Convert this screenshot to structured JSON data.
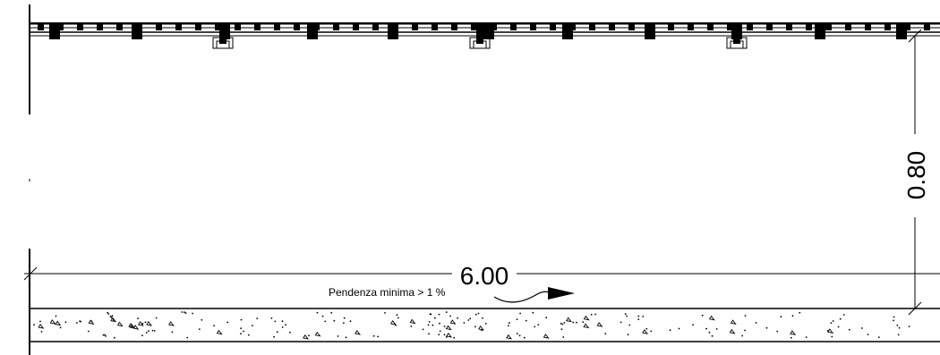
{
  "drawing": {
    "dimension_horizontal": "6.00",
    "dimension_vertical": "0.80",
    "slope_note": "Pendenza minima > 1 %"
  }
}
